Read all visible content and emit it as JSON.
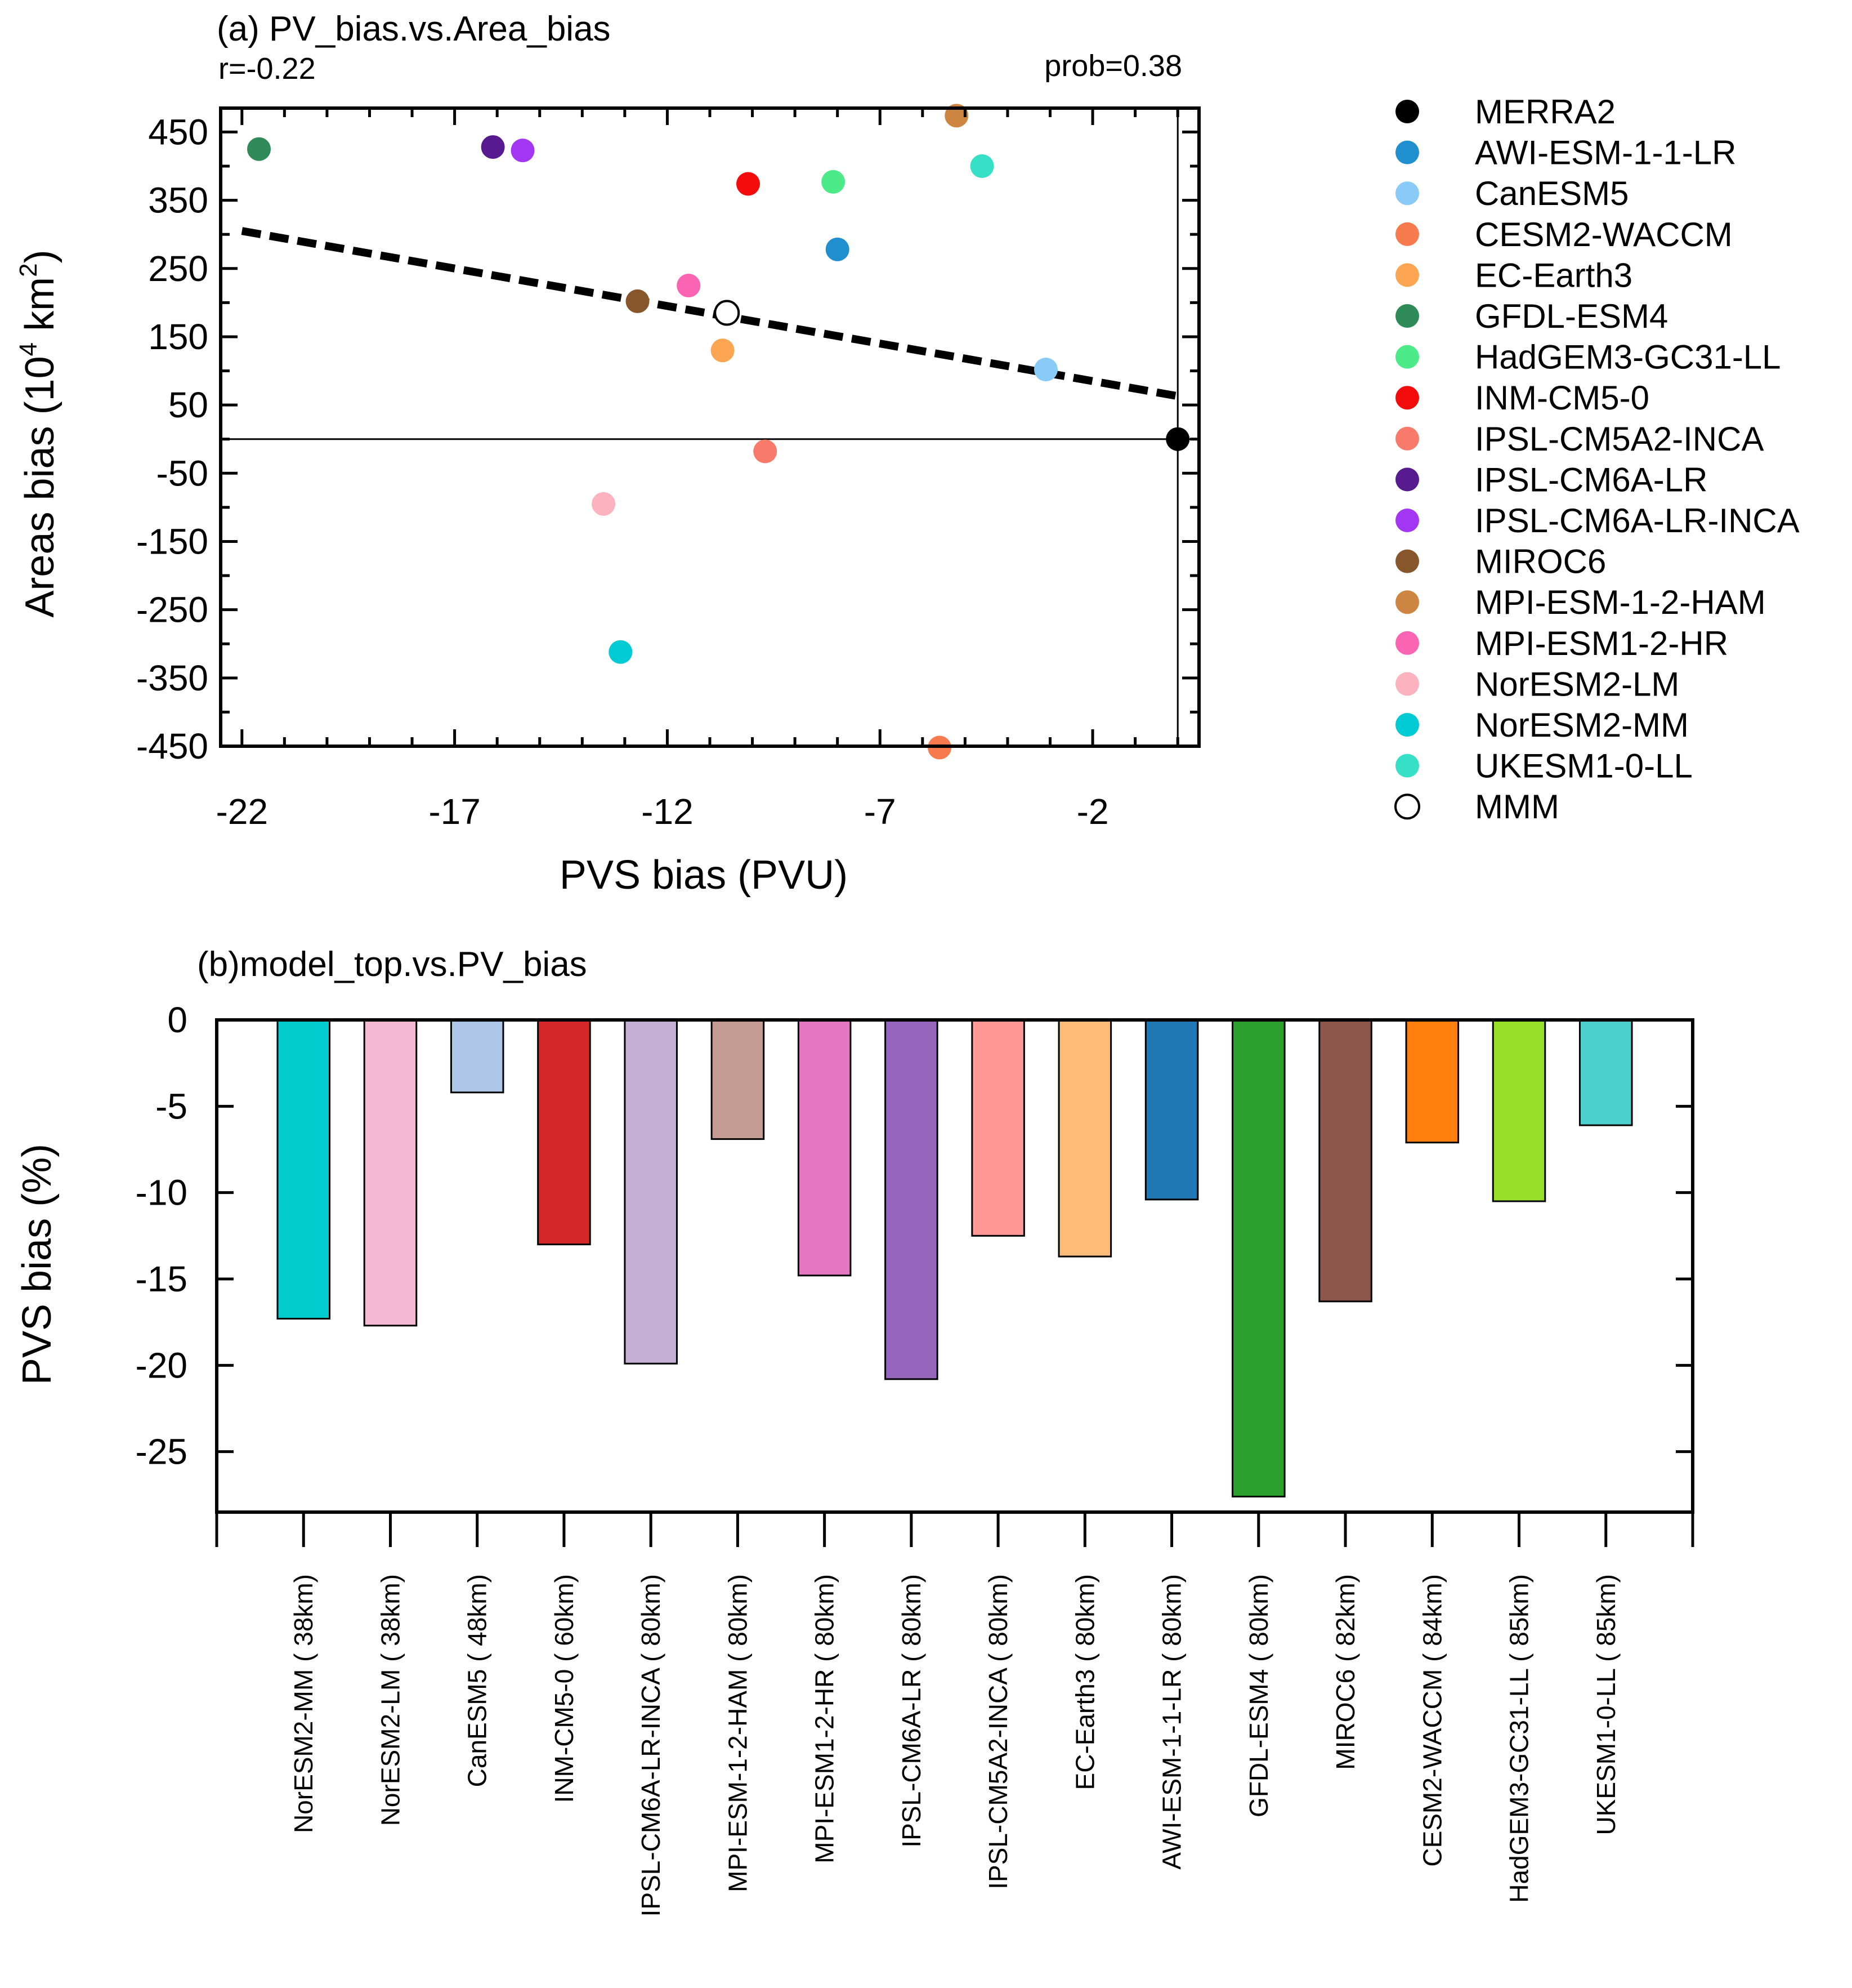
{
  "chart_data": [
    {
      "type": "scatter",
      "title": "(a) PV_bias.vs.Area_bias",
      "r_label": "r=-0.22",
      "prob_label": "prob=0.38",
      "xlabel": "PVS bias (PVU)",
      "ylabel_main": "Areas bias (10",
      "ylabel_sup": "4",
      "ylabel_mid": " km",
      "ylabel_sup2": "2",
      "ylabel_end": ")",
      "xlim": [
        -22.5,
        0.5
      ],
      "ylim": [
        -450,
        485
      ],
      "xticks": [
        -22,
        -17,
        -12,
        -7,
        -2
      ],
      "xtick_labels": [
        "-22",
        "-17",
        "-12",
        "-7",
        "-2"
      ],
      "yticks": [
        450,
        350,
        250,
        150,
        50,
        -50,
        -150,
        -250,
        -350,
        -450
      ],
      "ytick_labels": [
        "450",
        "350",
        "250",
        "150",
        "50",
        "-50",
        "-150",
        "-250",
        "-350",
        "-450"
      ],
      "reference_lines": {
        "y": 0,
        "x": 0
      },
      "regression_line": {
        "x": [
          -22,
          0
        ],
        "y": [
          305,
          63
        ]
      },
      "points": [
        {
          "name": "MERRA2",
          "x": 0,
          "y": 0,
          "color": "#000000",
          "filled": true
        },
        {
          "name": "AWI-ESM-1-1-LR",
          "x": -8,
          "y": 278,
          "color": "#1f8fcf",
          "filled": true
        },
        {
          "name": "CanESM5",
          "x": -3.1,
          "y": 102,
          "color": "#89caf6",
          "filled": true
        },
        {
          "name": "CESM2-WACCM",
          "x": -5.6,
          "y": -452,
          "color": "#f87b4e",
          "filled": true
        },
        {
          "name": "EC-Earth3",
          "x": -10.7,
          "y": 130,
          "color": "#fca653",
          "filled": true
        },
        {
          "name": "GFDL-ESM4",
          "x": -21.6,
          "y": 425,
          "color": "#2e8b57",
          "filled": true
        },
        {
          "name": "HadGEM3-GC31-LL",
          "x": -8.1,
          "y": 377,
          "color": "#4dea8a",
          "filled": true
        },
        {
          "name": "INM-CM5-0",
          "x": -10.1,
          "y": 374,
          "color": "#f40c0c",
          "filled": true
        },
        {
          "name": "IPSL-CM5A2-INCA",
          "x": -9.7,
          "y": -18,
          "color": "#f77a6a",
          "filled": true
        },
        {
          "name": "IPSL-CM6A-LR",
          "x": -16.1,
          "y": 428,
          "color": "#571a8f",
          "filled": true
        },
        {
          "name": "IPSL-CM6A-LR-INCA",
          "x": -15.4,
          "y": 423,
          "color": "#a336f2",
          "filled": true
        },
        {
          "name": "MIROC6",
          "x": -12.7,
          "y": 202,
          "color": "#87562a",
          "filled": true
        },
        {
          "name": "MPI-ESM-1-2-HAM",
          "x": -5.2,
          "y": 474,
          "color": "#cd8541",
          "filled": true
        },
        {
          "name": "MPI-ESM1-2-HR",
          "x": -11.5,
          "y": 225,
          "color": "#fa64b2",
          "filled": true
        },
        {
          "name": "NorESM2-LM",
          "x": -13.5,
          "y": -95,
          "color": "#fdb3bf",
          "filled": true
        },
        {
          "name": "NorESM2-MM",
          "x": -13.1,
          "y": -312,
          "color": "#00cad3",
          "filled": true
        },
        {
          "name": "UKESM1-0-LL",
          "x": -4.6,
          "y": 400,
          "color": "#35e0c6",
          "filled": true
        },
        {
          "name": "MMM",
          "x": -10.6,
          "y": 185,
          "color": "#000000",
          "filled": false
        }
      ]
    },
    {
      "type": "bar",
      "title": "(b)model_top.vs.PV_bias",
      "ylabel": "PVS bias (%)",
      "ylim": [
        -28.5,
        0
      ],
      "yticks": [
        0,
        -5,
        -10,
        -15,
        -20,
        -25
      ],
      "ytick_labels": [
        "0",
        "-5",
        "-10",
        "-15",
        "-20",
        "-25"
      ],
      "categories": [
        "NorESM2-MM ( 38km)",
        "NorESM2-LM ( 38km)",
        "CanESM5 ( 48km)",
        "INM-CM5-0 ( 60km)",
        "IPSL-CM6A-LR-INCA ( 80km)",
        "MPI-ESM-1-2-HAM ( 80km)",
        "MPI-ESM1-2-HR ( 80km)",
        "IPSL-CM6A-LR ( 80km)",
        "IPSL-CM5A2-INCA ( 80km)",
        "EC-Earth3 ( 80km)",
        "AWI-ESM-1-1-LR ( 80km)",
        "GFDL-ESM4 ( 80km)",
        "MIROC6 ( 82km)",
        "CESM2-WACCM ( 84km)",
        "HadGEM3-GC31-LL ( 85km)",
        "UKESM1-0-LL ( 85km)"
      ],
      "values": [
        -17.3,
        -17.7,
        -4.2,
        -13.0,
        -19.9,
        -6.9,
        -14.8,
        -20.8,
        -12.5,
        -13.7,
        -10.4,
        -27.6,
        -16.3,
        -7.1,
        -10.5,
        -6.1
      ],
      "colors": [
        "#00cccc",
        "#f5b7d2",
        "#aec7e8",
        "#d62728",
        "#c5b0d5",
        "#c49c94",
        "#e377c2",
        "#9467bd",
        "#ff9896",
        "#ffbb78",
        "#1f77b4",
        "#2ca02c",
        "#8c564b",
        "#ff7f0e",
        "#98df2a",
        "#4dd0cd"
      ]
    }
  ]
}
